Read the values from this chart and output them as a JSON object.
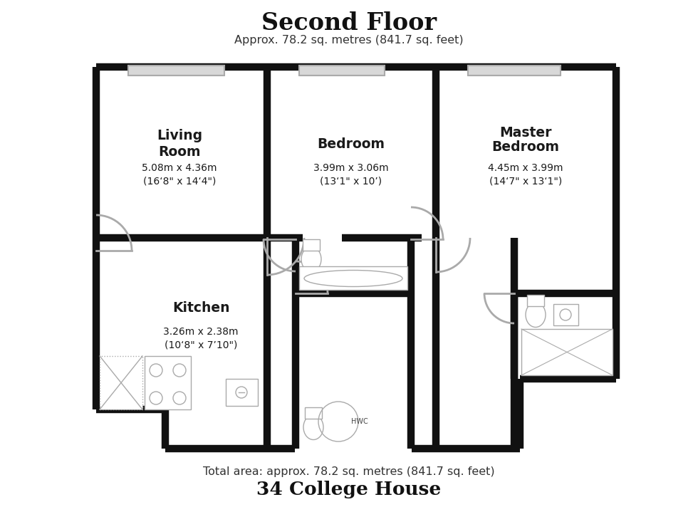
{
  "title": "Second Floor",
  "subtitle": "Approx. 78.2 sq. metres (841.7 sq. feet)",
  "footer_line1": "Total area: approx. 78.2 sq. metres (841.7 sq. feet)",
  "footer_line2": "34 College House",
  "bg_color": "#ffffff",
  "wall_color": "#111111",
  "gray_color": "#aaaaaa",
  "win_color": "#cccccc",
  "living_room_label": "Living\nRoom",
  "living_room_line1": "5.08m x 4.36m",
  "living_room_line2": "(16‘8\" x 14‘4\")",
  "bedroom_label": "Bedroom",
  "bedroom_line1": "3.99m x 3.06m",
  "bedroom_line2": "(13‘1\" x 10’)",
  "master_label_1": "Master",
  "master_label_2": "Bedroom",
  "master_line1": "4.45m x 3.99m",
  "master_line2": "(14‘7\" x 13‘1\")",
  "kitchen_label": "Kitchen",
  "kitchen_line1": "3.26m x 2.38m",
  "kitchen_line2": "(10‘8\" x 7’10\")",
  "hwc_label": "HWC"
}
